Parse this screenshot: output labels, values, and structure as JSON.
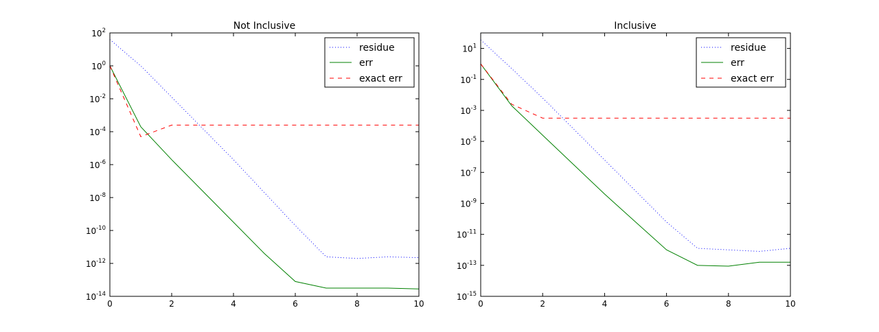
{
  "chart_data": [
    {
      "type": "line",
      "title": "Not Inclusive",
      "xlabel": "",
      "ylabel": "",
      "yscale": "log",
      "xlim": [
        0,
        10
      ],
      "ylim_exp": [
        -14,
        2
      ],
      "grid": false,
      "legend_position": "top-right",
      "x_ticks": [
        "0",
        "2",
        "4",
        "6",
        "8",
        "10"
      ],
      "y_ticks": [
        {
          "base": "10",
          "exp": "2"
        },
        {
          "base": "10",
          "exp": "0"
        },
        {
          "base": "10",
          "exp": "-2"
        },
        {
          "base": "10",
          "exp": "-4"
        },
        {
          "base": "10",
          "exp": "-6"
        },
        {
          "base": "10",
          "exp": "-8"
        },
        {
          "base": "10",
          "exp": "-10"
        },
        {
          "base": "10",
          "exp": "-12"
        },
        {
          "base": "10",
          "exp": "-14"
        }
      ],
      "series": [
        {
          "name": "residue",
          "color": "#0000ff",
          "style": "dotted",
          "x": [
            0,
            1,
            2,
            3,
            4,
            5,
            6,
            7,
            8,
            9,
            10
          ],
          "log10_y": [
            1.6,
            0.0,
            -1.9,
            -3.8,
            -5.7,
            -7.7,
            -9.7,
            -11.6,
            -11.7,
            -11.6,
            -11.65
          ]
        },
        {
          "name": "err",
          "color": "#008000",
          "style": "solid",
          "x": [
            0,
            1,
            2,
            3,
            4,
            5,
            6,
            7,
            8,
            9,
            10
          ],
          "log10_y": [
            0.0,
            -3.7,
            -5.7,
            -7.6,
            -9.5,
            -11.4,
            -13.1,
            -13.5,
            -13.5,
            -13.5,
            -13.55
          ]
        },
        {
          "name": "exact err",
          "color": "#ff0000",
          "style": "dashed",
          "x": [
            0,
            1,
            2,
            3,
            4,
            5,
            6,
            7,
            8,
            9,
            10
          ],
          "log10_y": [
            0.0,
            -4.3,
            -3.6,
            -3.6,
            -3.6,
            -3.6,
            -3.6,
            -3.6,
            -3.6,
            -3.6,
            -3.6
          ]
        }
      ]
    },
    {
      "type": "line",
      "title": "Inclusive",
      "xlabel": "",
      "ylabel": "",
      "yscale": "log",
      "xlim": [
        0,
        10
      ],
      "ylim_exp": [
        -15,
        2
      ],
      "grid": false,
      "legend_position": "top-right",
      "x_ticks": [
        "0",
        "2",
        "4",
        "6",
        "8",
        "10"
      ],
      "y_ticks": [
        {
          "base": "10",
          "exp": "1"
        },
        {
          "base": "10",
          "exp": "-1"
        },
        {
          "base": "10",
          "exp": "-3"
        },
        {
          "base": "10",
          "exp": "-5"
        },
        {
          "base": "10",
          "exp": "-7"
        },
        {
          "base": "10",
          "exp": "-9"
        },
        {
          "base": "10",
          "exp": "-11"
        },
        {
          "base": "10",
          "exp": "-13"
        },
        {
          "base": "10",
          "exp": "-15"
        }
      ],
      "series": [
        {
          "name": "residue",
          "color": "#0000ff",
          "style": "dotted",
          "x": [
            0,
            1,
            2,
            3,
            4,
            5,
            6,
            7,
            8,
            9,
            10
          ],
          "log10_y": [
            1.55,
            -0.3,
            -2.2,
            -4.2,
            -6.2,
            -8.2,
            -10.2,
            -11.9,
            -12.0,
            -12.1,
            -11.9
          ]
        },
        {
          "name": "err",
          "color": "#008000",
          "style": "solid",
          "x": [
            0,
            1,
            2,
            3,
            4,
            5,
            6,
            7,
            8,
            9,
            10
          ],
          "log10_y": [
            0.0,
            -2.7,
            -4.6,
            -6.5,
            -8.4,
            -10.2,
            -12.0,
            -13.0,
            -13.05,
            -12.8,
            -12.8
          ]
        },
        {
          "name": "exact err",
          "color": "#ff0000",
          "style": "dashed",
          "x": [
            0,
            1,
            2,
            3,
            4,
            5,
            6,
            7,
            8,
            9,
            10
          ],
          "log10_y": [
            0.0,
            -2.6,
            -3.5,
            -3.5,
            -3.5,
            -3.5,
            -3.5,
            -3.5,
            -3.5,
            -3.5,
            -3.5
          ]
        }
      ]
    }
  ]
}
